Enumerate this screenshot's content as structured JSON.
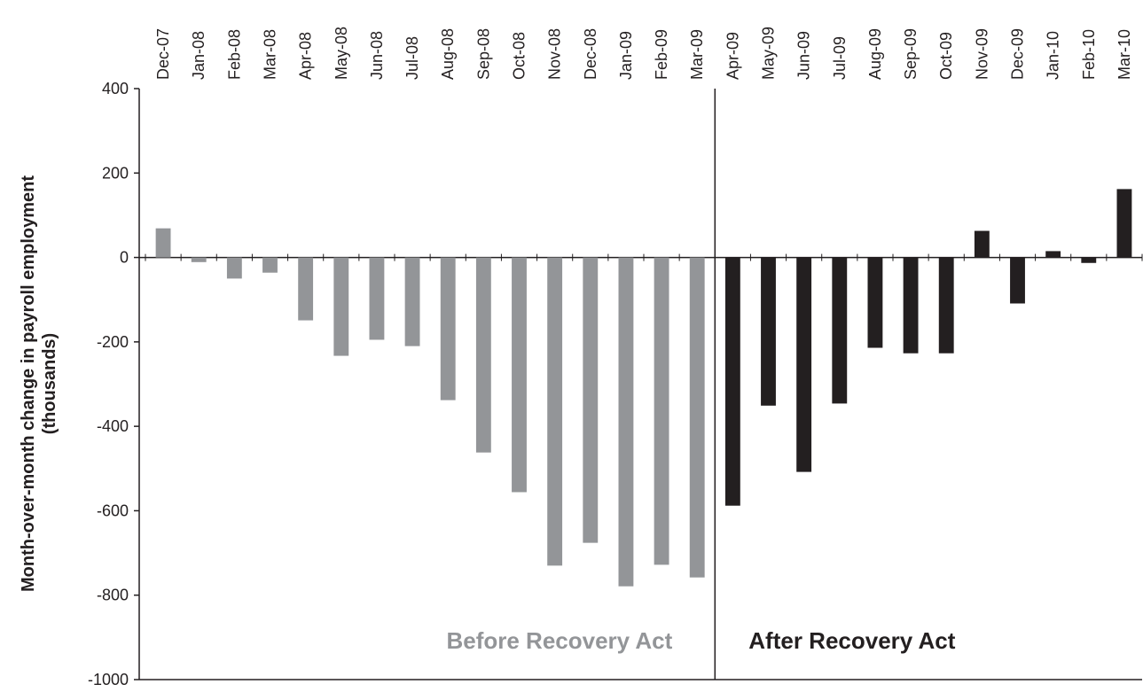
{
  "chart_data": {
    "type": "bar",
    "ylabel": [
      "Month-over-month change in payroll employment",
      "(thousands)"
    ],
    "categories": [
      "Dec-07",
      "Jan-08",
      "Feb-08",
      "Mar-08",
      "Apr-08",
      "May-08",
      "Jun-08",
      "Jul-08",
      "Aug-08",
      "Sep-08",
      "Oct-08",
      "Nov-08",
      "Dec-08",
      "Jan-09",
      "Feb-09",
      "Mar-09",
      "Apr-09",
      "May-09",
      "Jun-09",
      "Jul-09",
      "Aug-09",
      "Sep-09",
      "Oct-09",
      "Nov-09",
      "Dec-09",
      "Jan-10",
      "Feb-10",
      "Mar-10"
    ],
    "series": [
      {
        "name": "Before Recovery Act",
        "color": "#939598",
        "values": [
          69,
          -11,
          -50,
          -36,
          -149,
          -233,
          -195,
          -210,
          -338,
          -462,
          -556,
          -730,
          -676,
          -779,
          -728,
          -758,
          null,
          null,
          null,
          null,
          null,
          null,
          null,
          null,
          null,
          null,
          null,
          null
        ]
      },
      {
        "name": "After Recovery Act",
        "color": "#231f20",
        "values": [
          null,
          null,
          null,
          null,
          null,
          null,
          null,
          null,
          null,
          null,
          null,
          null,
          null,
          null,
          null,
          null,
          -588,
          -351,
          -508,
          -346,
          -214,
          -227,
          -227,
          63,
          -109,
          15,
          -13,
          162
        ]
      }
    ],
    "ylim": [
      -1000,
      400
    ],
    "yticks": [
      -1000,
      -800,
      -600,
      -400,
      -200,
      0,
      200,
      400
    ],
    "grid": false
  }
}
